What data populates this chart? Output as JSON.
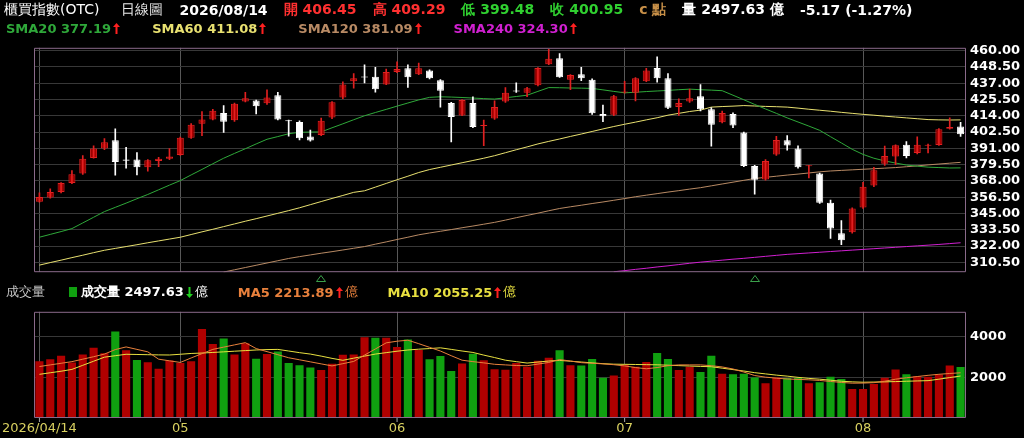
{
  "chart_data": [
    {
      "type": "candlestick",
      "title": "櫃買指數(OTC)",
      "annotations": [
        "日線圖",
        "2026/08/14",
        "開 406.45",
        "高 409.29",
        "低 399.48",
        "收 400.95",
        "c 點",
        "量 2497.63 億",
        "-5.17 (-1.27%)"
      ],
      "categories": [
        "2026/04/14",
        null,
        null,
        null,
        null,
        null,
        null,
        null,
        null,
        null,
        null,
        null,
        null,
        "05",
        null,
        null,
        null,
        null,
        null,
        null,
        null,
        null,
        null,
        null,
        null,
        null,
        null,
        null,
        null,
        null,
        null,
        null,
        null,
        "06",
        null,
        null,
        null,
        null,
        null,
        null,
        null,
        null,
        null,
        null,
        null,
        null,
        null,
        null,
        null,
        null,
        null,
        null,
        null,
        null,
        "07",
        null,
        null,
        null,
        null,
        null,
        null,
        null,
        null,
        null,
        null,
        null,
        null,
        null,
        null,
        null,
        null,
        null,
        null,
        null,
        null,
        null,
        "08",
        null,
        null,
        null,
        null,
        null,
        null,
        null,
        null,
        null
      ],
      "ohlc": [
        [
          353.3,
          359.5,
          352.9,
          356.6
        ],
        [
          356.2,
          362.3,
          355.8,
          360.1
        ],
        [
          360.1,
          366.8,
          359.5,
          366.5
        ],
        [
          366.5,
          375.2,
          366.0,
          372.6
        ],
        [
          373.3,
          385.8,
          372.6,
          383.6
        ],
        [
          384.2,
          392.8,
          384.0,
          390.8
        ],
        [
          390.8,
          397.8,
          390.0,
          395.2
        ],
        [
          396.7,
          404.8,
          372.0,
          381.4
        ],
        [
          383.1,
          391.7,
          377.0,
          382.3
        ],
        [
          383.1,
          388.0,
          372.2,
          377.7
        ],
        [
          377.7,
          383.0,
          374.8,
          382.5
        ],
        [
          382.0,
          384.7,
          378.1,
          383.6
        ],
        [
          383.6,
          390.8,
          383.0,
          385.3
        ],
        [
          386.2,
          399.0,
          386.0,
          398.5
        ],
        [
          398.5,
          408.5,
          398.0,
          407.7
        ],
        [
          408.3,
          417.0,
          400.0,
          411.4
        ],
        [
          411.4,
          418.5,
          411.0,
          417.5
        ],
        [
          415.9,
          421.2,
          402.2,
          409.8
        ],
        [
          410.9,
          423.0,
          410.0,
          422.5
        ],
        [
          424.1,
          430.6,
          423.8,
          426.3
        ],
        [
          424.7,
          425.0,
          415.3,
          420.8
        ],
        [
          422.8,
          432.4,
          422.0,
          426.9
        ],
        [
          428.5,
          430.6,
          411.0,
          411.4
        ],
        [
          410.6,
          411.0,
          399.6,
          410.2
        ],
        [
          409.6,
          410.5,
          397.0,
          398.2
        ],
        [
          399.3,
          403.9,
          396.0,
          396.5
        ],
        [
          400.4,
          412.3,
          400.0,
          410.5
        ],
        [
          412.7,
          424.0,
          412.0,
          423.6
        ],
        [
          426.9,
          438.0,
          426.0,
          436.1
        ],
        [
          438.3,
          443.8,
          433.5,
          440.5
        ],
        [
          441.2,
          449.9,
          437.2,
          441.0
        ],
        [
          441.6,
          448.2,
          430.7,
          432.8
        ],
        [
          436.1,
          447.0,
          436.0,
          444.9
        ],
        [
          444.9,
          452.1,
          444.5,
          447.1
        ],
        [
          447.5,
          449.9,
          434.0,
          441.2
        ],
        [
          443.4,
          451.2,
          443.0,
          447.5
        ],
        [
          446.0,
          446.4,
          440.0,
          440.5
        ],
        [
          439.0,
          439.5,
          420.1,
          431.7
        ],
        [
          423.0,
          423.5,
          395.6,
          413.1
        ],
        [
          414.2,
          425.5,
          414.0,
          425.2
        ],
        [
          423.0,
          427.4,
          405.5,
          406.1
        ],
        [
          406.7,
          411.0,
          392.8,
          407.0
        ],
        [
          412.0,
          424.5,
          411.5,
          420.1
        ],
        [
          424.1,
          433.9,
          423.5,
          430.2
        ],
        [
          431.3,
          437.2,
          430.5,
          431.1
        ],
        [
          430.2,
          434.0,
          427.4,
          433.5
        ],
        [
          435.5,
          448.0,
          435.0,
          447.7
        ],
        [
          450.3,
          460.9,
          450.0,
          454.3
        ],
        [
          454.7,
          458.0,
          441.0,
          441.2
        ],
        [
          439.4,
          443.0,
          432.4,
          442.7
        ],
        [
          443.4,
          448.2,
          438.8,
          440.5
        ],
        [
          439.4,
          440.0,
          415.0,
          415.8
        ],
        [
          415.3,
          421.5,
          409.8,
          413.6
        ],
        [
          414.7,
          428.5,
          414.0,
          427.8
        ],
        [
          430.5,
          438.3,
          430.0,
          430.7
        ],
        [
          430.2,
          441.0,
          424.5,
          440.5
        ],
        [
          438.3,
          447.5,
          438.0,
          446.0
        ],
        [
          447.7,
          455.6,
          437.7,
          440.5
        ],
        [
          440.5,
          443.8,
          419.0,
          419.7
        ],
        [
          420.1,
          426.0,
          414.2,
          423.0
        ],
        [
          424.1,
          432.8,
          423.5,
          426.3
        ],
        [
          427.8,
          436.1,
          417.5,
          418.6
        ],
        [
          418.6,
          419.7,
          392.6,
          407.7
        ],
        [
          409.4,
          417.3,
          409.0,
          416.0
        ],
        [
          415.3,
          416.0,
          405.5,
          407.2
        ],
        [
          402.2,
          402.5,
          378.0,
          378.5
        ],
        [
          378.5,
          379.0,
          358.6,
          368.8
        ],
        [
          368.9,
          383.0,
          368.5,
          382.0
        ],
        [
          386.6,
          399.5,
          386.0,
          396.9
        ],
        [
          396.7,
          400.0,
          389.7,
          393.0
        ],
        [
          390.8,
          392.8,
          377.0,
          377.7
        ],
        [
          378.4,
          379.0,
          370.1,
          378.6
        ],
        [
          373.3,
          373.5,
          352.0,
          352.5
        ],
        [
          352.5,
          354.5,
          327.4,
          334.3
        ],
        [
          331.0,
          340.0,
          322.9,
          326.0
        ],
        [
          331.7,
          349.0,
          331.0,
          348.5
        ],
        [
          349.2,
          367.0,
          348.5,
          363.9
        ],
        [
          364.8,
          377.5,
          364.0,
          375.5
        ],
        [
          380.1,
          392.6,
          379.0,
          385.6
        ],
        [
          385.2,
          393.5,
          379.5,
          393.1
        ],
        [
          393.6,
          395.7,
          384.2,
          385.6
        ],
        [
          387.7,
          399.1,
          387.0,
          393.6
        ],
        [
          392.9,
          394.0,
          387.7,
          393.3
        ],
        [
          393.3,
          405.0,
          393.0,
          404.4
        ],
        [
          404.9,
          412.6,
          404.5,
          406.1
        ],
        [
          406.45,
          409.29,
          399.48,
          400.95
        ]
      ],
      "series": [
        {
          "name": "SMA20 377.19",
          "type": "line",
          "color": "#2fa83a",
          "values": [
            328.2,
            330.2,
            332.2,
            334.3,
            338.3,
            342.3,
            346.3,
            349.3,
            352.3,
            355.4,
            358.4,
            361.7,
            365.0,
            368.2,
            372.2,
            376.1,
            380.1,
            384.0,
            387.4,
            390.7,
            394.1,
            397.4,
            399.3,
            401.3,
            402.3,
            402.5,
            402.6,
            405.5,
            408.3,
            411.2,
            414.0,
            416.3,
            418.5,
            420.8,
            423.0,
            425.2,
            427.0,
            427.4,
            427.2,
            426.9,
            426.5,
            426.1,
            425.8,
            426.7,
            427.6,
            428.5,
            431.2,
            433.9,
            433.8,
            433.6,
            433.5,
            433.3,
            432.3,
            431.2,
            430.2,
            430.6,
            431.1,
            431.5,
            431.9,
            432.4,
            432.8,
            432.4,
            432.1,
            431.7,
            428.5,
            425.3,
            422.0,
            418.8,
            415.7,
            412.5,
            409.6,
            406.7,
            403.7,
            399.2,
            394.8,
            390.3,
            386.7,
            384.0,
            382.1,
            380.6,
            379.2,
            378.4,
            377.7,
            377.4,
            377.1,
            377.19
          ]
        },
        {
          "name": "SMA60 411.08",
          "type": "line",
          "color": "#e8e070",
          "values": [
            308.5,
            310.3,
            312.0,
            313.8,
            315.5,
            317.3,
            319.0,
            320.3,
            321.6,
            322.9,
            324.3,
            325.6,
            326.9,
            328.2,
            330.1,
            332.0,
            333.8,
            335.7,
            337.6,
            339.5,
            341.3,
            343.2,
            345.1,
            347.0,
            349.0,
            351.2,
            353.4,
            355.6,
            357.7,
            359.9,
            361.0,
            363.6,
            366.2,
            368.8,
            371.3,
            373.9,
            376.0,
            377.6,
            379.2,
            380.8,
            382.4,
            384.0,
            385.8,
            387.9,
            390.0,
            392.0,
            394.1,
            395.9,
            397.6,
            399.4,
            401.1,
            402.9,
            404.7,
            406.4,
            408.0,
            409.5,
            411.1,
            412.6,
            414.4,
            415.7,
            417.0,
            418.0,
            420.1,
            420.5,
            420.8,
            421.2,
            420.9,
            420.6,
            420.4,
            420.1,
            419.4,
            418.6,
            417.9,
            417.2,
            416.4,
            415.7,
            415.0,
            414.4,
            413.7,
            413.1,
            412.5,
            411.9,
            411.3,
            411.1,
            411.0,
            411.08
          ]
        },
        {
          "name": "SMA120 381.09",
          "type": "line",
          "color": "#b88a64",
          "values": [
            null,
            null,
            null,
            null,
            null,
            null,
            null,
            null,
            null,
            null,
            null,
            null,
            null,
            null,
            null,
            null,
            null,
            303.6,
            305.2,
            306.8,
            308.4,
            310.0,
            311.6,
            313.2,
            314.5,
            315.7,
            316.9,
            318.0,
            319.2,
            320.4,
            321.6,
            323.3,
            324.9,
            326.6,
            328.2,
            329.9,
            331.2,
            332.4,
            333.6,
            334.9,
            336.1,
            337.4,
            338.7,
            340.3,
            342.0,
            343.6,
            345.2,
            346.9,
            348.5,
            349.7,
            350.8,
            352.0,
            353.1,
            354.3,
            355.5,
            356.8,
            357.9,
            359.0,
            360.1,
            361.1,
            362.2,
            363.2,
            364.5,
            365.8,
            367.1,
            368.4,
            369.7,
            370.5,
            371.3,
            372.1,
            372.8,
            373.6,
            374.4,
            375.0,
            375.4,
            375.8,
            376.2,
            376.6,
            377.0,
            377.4,
            378.0,
            378.6,
            379.3,
            379.9,
            380.5,
            381.09
          ]
        },
        {
          "name": "SMA240 324.30",
          "type": "line",
          "color": "#d020d0",
          "values": [
            null,
            null,
            null,
            null,
            null,
            null,
            null,
            null,
            null,
            null,
            null,
            null,
            null,
            null,
            null,
            null,
            null,
            null,
            null,
            null,
            null,
            null,
            null,
            null,
            null,
            null,
            null,
            null,
            null,
            null,
            null,
            null,
            null,
            null,
            null,
            null,
            null,
            null,
            null,
            null,
            null,
            null,
            null,
            null,
            null,
            null,
            null,
            null,
            null,
            null,
            null,
            null,
            null,
            303.8,
            304.6,
            305.5,
            306.3,
            307.2,
            308.0,
            308.9,
            309.8,
            310.6,
            311.3,
            312.0,
            312.7,
            313.3,
            314.0,
            314.7,
            315.4,
            316.1,
            316.6,
            317.1,
            317.6,
            318.1,
            318.6,
            319.1,
            319.6,
            320.1,
            320.6,
            321.1,
            321.6,
            322.1,
            322.6,
            323.1,
            323.7,
            324.3
          ]
        }
      ],
      "ylim": [
        303.5,
        462
      ],
      "yticks": [
        {
          "value": 310.5,
          "label": "310.50"
        },
        {
          "value": 322,
          "label": "322.00"
        },
        {
          "value": 333.5,
          "label": "333.50"
        },
        {
          "value": 345,
          "label": "345.00"
        },
        {
          "value": 356.5,
          "label": "356.50"
        },
        {
          "value": 368,
          "label": "368.00"
        },
        {
          "value": 379.5,
          "label": "379.50"
        },
        {
          "value": 391,
          "label": "391.00"
        },
        {
          "value": 402.5,
          "label": "402.50"
        },
        {
          "value": 414,
          "label": "414.00"
        },
        {
          "value": 425.5,
          "label": "425.50"
        },
        {
          "value": 437,
          "label": "437.00"
        },
        {
          "value": 448.5,
          "label": "448.50"
        },
        {
          "value": 460,
          "label": "460.00"
        }
      ],
      "grid": true,
      "legend": "top left",
      "tick_labels": "y"
    },
    {
      "type": "bar",
      "title": "成交量",
      "ylabel": "億",
      "categories": [
        "2026/04/14",
        null,
        null,
        null,
        null,
        null,
        null,
        null,
        null,
        null,
        null,
        null,
        null,
        "05",
        null,
        null,
        null,
        null,
        null,
        null,
        null,
        null,
        null,
        null,
        null,
        null,
        null,
        null,
        null,
        null,
        null,
        null,
        null,
        "06",
        null,
        null,
        null,
        null,
        null,
        null,
        null,
        null,
        null,
        null,
        null,
        null,
        null,
        null,
        null,
        null,
        null,
        null,
        null,
        null,
        "07",
        null,
        null,
        null,
        null,
        null,
        null,
        null,
        null,
        null,
        null,
        null,
        null,
        null,
        null,
        null,
        null,
        null,
        null,
        null,
        null,
        null,
        "08",
        null,
        null,
        null,
        null,
        null,
        null,
        null,
        null,
        null
      ],
      "series": [
        {
          "name": "成交量 2497.63",
          "type": "bar",
          "colors": [
            "#b00000",
            "#b00000",
            "#b00000",
            "#b00000",
            "#b00000",
            "#b00000",
            "#b00000",
            "#10a010",
            "#b00000",
            "#10a010",
            "#b00000",
            "#b00000",
            "#b00000",
            "#b00000",
            "#b00000",
            "#b00000",
            "#b00000",
            "#10a010",
            "#b00000",
            "#b00000",
            "#10a010",
            "#b00000",
            "#10a010",
            "#10a010",
            "#10a010",
            "#10a010",
            "#b00000",
            "#b00000",
            "#b00000",
            "#b00000",
            "#b00000",
            "#10a010",
            "#b00000",
            "#b00000",
            "#10a010",
            "#b00000",
            "#10a010",
            "#10a010",
            "#10a010",
            "#b00000",
            "#10a010",
            "#b00000",
            "#b00000",
            "#b00000",
            "#b00000",
            "#b00000",
            "#b00000",
            "#b00000",
            "#10a010",
            "#b00000",
            "#10a010",
            "#10a010",
            "#10a010",
            "#b00000",
            "#b00000",
            "#b00000",
            "#b00000",
            "#10a010",
            "#10a010",
            "#b00000",
            "#b00000",
            "#10a010",
            "#10a010",
            "#b00000",
            "#10a010",
            "#10a010",
            "#10a010",
            "#b00000",
            "#b00000",
            "#10a010",
            "#10a010",
            "#b00000",
            "#10a010",
            "#10a010",
            "#10a010",
            "#b00000",
            "#b00000",
            "#b00000",
            "#b00000",
            "#b00000",
            "#10a010",
            "#b00000",
            "#b00000",
            "#b00000",
            "#b00000",
            "#10a010"
          ],
          "values": [
            2779,
            2871,
            3054,
            2718,
            3115,
            3436,
            3176,
            4230,
            3314,
            2840,
            2733,
            2413,
            2810,
            2688,
            2779,
            4352,
            3619,
            3894,
            3115,
            3665,
            2901,
            3130,
            3252,
            2688,
            2581,
            2474,
            2352,
            2657,
            3100,
            3115,
            3955,
            3924,
            3924,
            3482,
            3848,
            3329,
            2871,
            3039,
            2306,
            2672,
            3146,
            2825,
            2382,
            2367,
            2688,
            2504,
            2800,
            2945,
            3317,
            2589,
            2573,
            2883,
            1969,
            2077,
            2604,
            2511,
            2744,
            3178,
            2883,
            2356,
            2511,
            2248,
            3054,
            2170,
            2139,
            2170,
            1984,
            1705,
            1984,
            1953,
            1953,
            1705,
            1752,
            2015,
            1907,
            1426,
            1426,
            1659,
            1969,
            2372,
            2139,
            2046,
            2015,
            2124,
            2573,
            2497.63
          ]
        },
        {
          "name": "MA5 2213.89",
          "type": "line",
          "color": "#e8803c",
          "values": [
            2520,
            2600,
            2680,
            2760,
            2880,
            3000,
            3130,
            3350,
            3480,
            3360,
            3240,
            2880,
            2800,
            2720,
            2940,
            3150,
            3360,
            3470,
            3580,
            3690,
            3400,
            3250,
            3100,
            2950,
            2850,
            2750,
            2650,
            2550,
            2660,
            2770,
            3080,
            3380,
            3680,
            3760,
            3810,
            3640,
            3460,
            3280,
            3050,
            2830,
            2760,
            2700,
            2630,
            2600,
            2570,
            2560,
            2640,
            2720,
            2860,
            2790,
            2710,
            2680,
            2650,
            2610,
            2550,
            2470,
            2410,
            2470,
            2560,
            2600,
            2600,
            2600,
            2560,
            2500,
            2400,
            2250,
            2080,
            2000,
            1950,
            1910,
            1890,
            1870,
            1840,
            1790,
            1740,
            1705,
            1710,
            1730,
            1800,
            1900,
            1970,
            2030,
            2090,
            2140,
            2180,
            2213.89
          ]
        },
        {
          "name": "MA10 2055.25",
          "type": "line",
          "color": "#e8e040",
          "values": [
            2138,
            2215,
            2290,
            2380,
            2580,
            2780,
            2978,
            3050,
            3120,
            3110,
            3100,
            3090,
            3085,
            3120,
            3160,
            3180,
            3210,
            3240,
            3270,
            3300,
            3330,
            3350,
            3359,
            3280,
            3200,
            3130,
            3030,
            2920,
            2825,
            2930,
            3030,
            3130,
            3200,
            3270,
            3330,
            3370,
            3400,
            3436,
            3360,
            3280,
            3210,
            3080,
            2960,
            2830,
            2760,
            2690,
            2740,
            2790,
            2820,
            2780,
            2740,
            2700,
            2660,
            2635,
            2628,
            2620,
            2612,
            2605,
            2585,
            2565,
            2545,
            2525,
            2511,
            2440,
            2370,
            2300,
            2220,
            2160,
            2100,
            2050,
            1990,
            1940,
            1900,
            1850,
            1800,
            1770,
            1752,
            1760,
            1770,
            1783,
            1800,
            1815,
            1829,
            1900,
            1980,
            2055.25
          ]
        }
      ],
      "ylim": [
        0,
        5200
      ],
      "yticks": [
        2000,
        4000
      ],
      "grid": true,
      "legend": "top left"
    }
  ]
}
